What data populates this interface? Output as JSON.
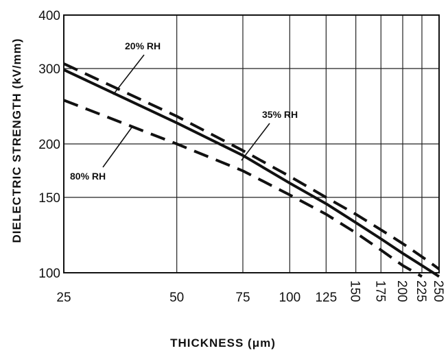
{
  "chart_data": {
    "type": "line",
    "x_scale": "log",
    "y_scale": "log",
    "xlabel": "THICKNESS (μm)",
    "ylabel": "DIELECTRIC STRENGTH (kV/mm)",
    "xlim": [
      25,
      250
    ],
    "ylim": [
      100,
      400
    ],
    "x_ticks": [
      25,
      50,
      75,
      100,
      125,
      150,
      175,
      200,
      225,
      250
    ],
    "x_tick_labels": [
      "25",
      "50",
      "75",
      "100",
      "125",
      "150",
      "175",
      "200",
      "225",
      "250"
    ],
    "y_ticks": [
      100,
      150,
      200,
      300,
      400
    ],
    "y_tick_labels": [
      "100",
      "150",
      "200",
      "300",
      "400"
    ],
    "grid": true,
    "series": [
      {
        "name": "20% RH",
        "style": "dashed",
        "points": [
          [
            25,
            308
          ],
          [
            50,
            232
          ],
          [
            75,
            193
          ],
          [
            100,
            168
          ],
          [
            125,
            150
          ],
          [
            150,
            137
          ],
          [
            175,
            126
          ],
          [
            200,
            117
          ],
          [
            225,
            109
          ],
          [
            250,
            102
          ]
        ]
      },
      {
        "name": "35% RH",
        "style": "solid",
        "points": [
          [
            25,
            298
          ],
          [
            50,
            224
          ],
          [
            75,
            188
          ],
          [
            100,
            162
          ],
          [
            125,
            145
          ],
          [
            150,
            131
          ],
          [
            175,
            120
          ],
          [
            200,
            111
          ],
          [
            225,
            104
          ],
          [
            250,
            98
          ]
        ]
      },
      {
        "name": "80% RH",
        "style": "dashed",
        "points": [
          [
            25,
            253
          ],
          [
            50,
            200
          ],
          [
            75,
            173
          ],
          [
            100,
            152
          ],
          [
            125,
            137
          ],
          [
            150,
            124
          ],
          [
            175,
            113
          ],
          [
            200,
            104
          ],
          [
            225,
            98
          ]
        ]
      }
    ]
  }
}
